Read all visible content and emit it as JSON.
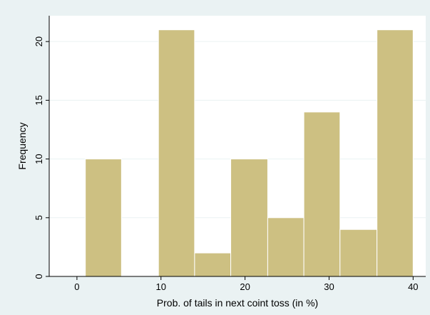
{
  "chart_data": {
    "type": "bar",
    "title": "",
    "xlabel": "Prob. of tails in next coint toss (in %)",
    "ylabel": "Frequency",
    "xlim": [
      -3.3,
      41.5
    ],
    "ylim": [
      0,
      22.2
    ],
    "x_ticks": [
      0,
      10,
      20,
      30,
      40
    ],
    "y_ticks": [
      0,
      5,
      10,
      15,
      20
    ],
    "bins": [
      {
        "start": 1.0,
        "end": 5.3,
        "value": 10
      },
      {
        "start": 5.3,
        "end": 9.7,
        "value": 0
      },
      {
        "start": 9.7,
        "end": 14.0,
        "value": 21
      },
      {
        "start": 14.0,
        "end": 18.3,
        "value": 2
      },
      {
        "start": 18.3,
        "end": 22.7,
        "value": 10
      },
      {
        "start": 22.7,
        "end": 27.0,
        "value": 5
      },
      {
        "start": 27.0,
        "end": 31.3,
        "value": 14
      },
      {
        "start": 31.3,
        "end": 35.7,
        "value": 4
      },
      {
        "start": 35.7,
        "end": 40.0,
        "value": 21
      }
    ],
    "grid": true,
    "colors": {
      "bar_fill": "#cdc082",
      "bar_edge": "#ffffff",
      "plot_background": "#ffffff",
      "page_background": "#eaf2f3"
    }
  }
}
